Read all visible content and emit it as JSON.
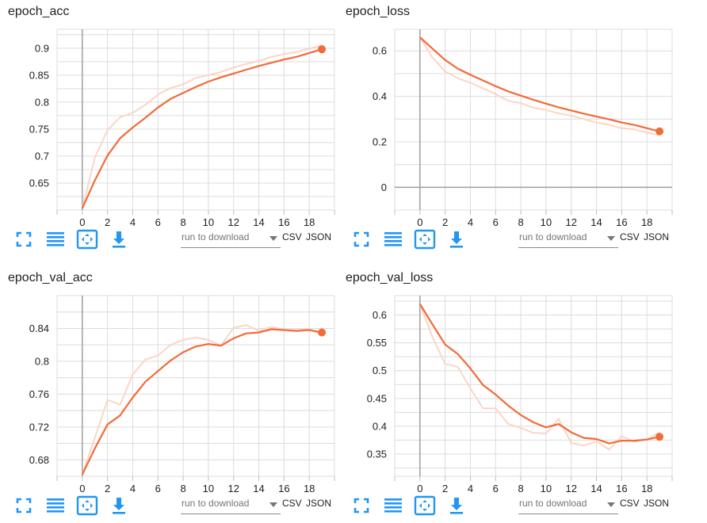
{
  "colors": {
    "accent": "#f26b38",
    "raw": "#fbd5c5",
    "icon": "#2196f3"
  },
  "toolbar": {
    "icons": [
      "fullscreen-icon",
      "toggle-log-scale-icon",
      "fit-domain-icon",
      "download-icon"
    ],
    "download_placeholder": "run to download",
    "csv_label": "CSV",
    "json_label": "JSON"
  },
  "chart_data": [
    {
      "type": "line",
      "title": "epoch_acc",
      "xlim": [
        -2,
        20
      ],
      "ylim": [
        0.6,
        0.935
      ],
      "xticks": [
        0,
        2,
        4,
        6,
        8,
        10,
        12,
        14,
        16,
        18
      ],
      "yticks": [
        0.65,
        0.7,
        0.75,
        0.8,
        0.85,
        0.9
      ],
      "ytick_labels": [
        "0.65",
        "0.7",
        "0.75",
        "0.8",
        "0.85",
        "0.9"
      ],
      "series": [
        {
          "role": "raw",
          "x": [
            0,
            1,
            2,
            3,
            4,
            5,
            6,
            7,
            8,
            9,
            10,
            11,
            12,
            13,
            14,
            15,
            16,
            17,
            18,
            19
          ],
          "y": [
            0.603,
            0.697,
            0.748,
            0.772,
            0.78,
            0.795,
            0.814,
            0.826,
            0.833,
            0.845,
            0.85,
            0.856,
            0.864,
            0.871,
            0.876,
            0.884,
            0.889,
            0.893,
            0.899,
            0.905
          ]
        },
        {
          "role": "smoothed",
          "x": [
            0,
            1,
            2,
            3,
            4,
            5,
            6,
            7,
            8,
            9,
            10,
            11,
            12,
            13,
            14,
            15,
            16,
            17,
            18,
            19
          ],
          "y": [
            0.603,
            0.655,
            0.701,
            0.733,
            0.753,
            0.771,
            0.79,
            0.806,
            0.817,
            0.828,
            0.838,
            0.846,
            0.853,
            0.86,
            0.867,
            0.873,
            0.879,
            0.884,
            0.891,
            0.898
          ]
        }
      ]
    },
    {
      "type": "line",
      "title": "epoch_loss",
      "xlim": [
        -2,
        20
      ],
      "ylim": [
        -0.1,
        0.695
      ],
      "xticks": [
        0,
        2,
        4,
        6,
        8,
        10,
        12,
        14,
        16,
        18
      ],
      "yticks": [
        0,
        0.2,
        0.4,
        0.6
      ],
      "ytick_labels": [
        "0",
        "0.2",
        "0.4",
        "0.6"
      ],
      "series": [
        {
          "role": "raw",
          "x": [
            0,
            1,
            2,
            3,
            4,
            5,
            6,
            7,
            8,
            9,
            10,
            11,
            12,
            13,
            14,
            15,
            16,
            17,
            18,
            19
          ],
          "y": [
            0.66,
            0.57,
            0.51,
            0.48,
            0.46,
            0.435,
            0.41,
            0.38,
            0.37,
            0.35,
            0.34,
            0.325,
            0.315,
            0.3,
            0.285,
            0.275,
            0.26,
            0.255,
            0.24,
            0.23
          ]
        },
        {
          "role": "smoothed",
          "x": [
            0,
            1,
            2,
            3,
            4,
            5,
            6,
            7,
            8,
            9,
            10,
            11,
            12,
            13,
            14,
            15,
            16,
            17,
            18,
            19
          ],
          "y": [
            0.66,
            0.61,
            0.56,
            0.522,
            0.495,
            0.47,
            0.445,
            0.422,
            0.403,
            0.385,
            0.368,
            0.352,
            0.338,
            0.324,
            0.311,
            0.299,
            0.285,
            0.274,
            0.26,
            0.246
          ]
        }
      ]
    },
    {
      "type": "line",
      "title": "epoch_val_acc",
      "xlim": [
        -2,
        20
      ],
      "ylim": [
        0.66,
        0.88
      ],
      "xticks": [
        0,
        2,
        4,
        6,
        8,
        10,
        12,
        14,
        16,
        18
      ],
      "yticks": [
        0.68,
        0.72,
        0.76,
        0.8,
        0.84
      ],
      "ytick_labels": [
        "0.68",
        "0.72",
        "0.76",
        "0.8",
        "0.84"
      ],
      "series": [
        {
          "role": "raw",
          "x": [
            0,
            1,
            2,
            3,
            4,
            5,
            6,
            7,
            8,
            9,
            10,
            11,
            12,
            13,
            14,
            15,
            16,
            17,
            18,
            19
          ],
          "y": [
            0.662,
            0.707,
            0.753,
            0.747,
            0.784,
            0.802,
            0.807,
            0.82,
            0.826,
            0.829,
            0.826,
            0.819,
            0.841,
            0.844,
            0.837,
            0.842,
            0.838,
            0.838,
            0.839,
            0.833
          ]
        },
        {
          "role": "smoothed",
          "x": [
            0,
            1,
            2,
            3,
            4,
            5,
            6,
            7,
            8,
            9,
            10,
            11,
            12,
            13,
            14,
            15,
            16,
            17,
            18,
            19
          ],
          "y": [
            0.662,
            0.694,
            0.723,
            0.734,
            0.756,
            0.775,
            0.788,
            0.801,
            0.811,
            0.818,
            0.821,
            0.819,
            0.828,
            0.834,
            0.835,
            0.839,
            0.838,
            0.837,
            0.838,
            0.835
          ]
        }
      ]
    },
    {
      "type": "line",
      "title": "epoch_val_loss",
      "xlim": [
        -2,
        20
      ],
      "ylim": [
        0.31,
        0.635
      ],
      "xticks": [
        0,
        2,
        4,
        6,
        8,
        10,
        12,
        14,
        16,
        18
      ],
      "yticks": [
        0.35,
        0.4,
        0.45,
        0.5,
        0.55,
        0.6
      ],
      "ytick_labels": [
        "0.35",
        "0.4",
        "0.45",
        "0.5",
        "0.55",
        "0.6"
      ],
      "series": [
        {
          "role": "raw",
          "x": [
            0,
            1,
            2,
            3,
            4,
            5,
            6,
            7,
            8,
            9,
            10,
            11,
            12,
            13,
            14,
            15,
            16,
            17,
            18,
            19
          ],
          "y": [
            0.62,
            0.56,
            0.512,
            0.507,
            0.468,
            0.432,
            0.432,
            0.404,
            0.397,
            0.388,
            0.387,
            0.413,
            0.37,
            0.365,
            0.373,
            0.358,
            0.382,
            0.372,
            0.376,
            0.389
          ]
        },
        {
          "role": "smoothed",
          "x": [
            0,
            1,
            2,
            3,
            4,
            5,
            6,
            7,
            8,
            9,
            10,
            11,
            12,
            13,
            14,
            15,
            16,
            17,
            18,
            19
          ],
          "y": [
            0.62,
            0.583,
            0.547,
            0.53,
            0.504,
            0.474,
            0.457,
            0.437,
            0.42,
            0.407,
            0.398,
            0.404,
            0.389,
            0.379,
            0.377,
            0.369,
            0.374,
            0.374,
            0.376,
            0.381
          ]
        }
      ]
    }
  ]
}
